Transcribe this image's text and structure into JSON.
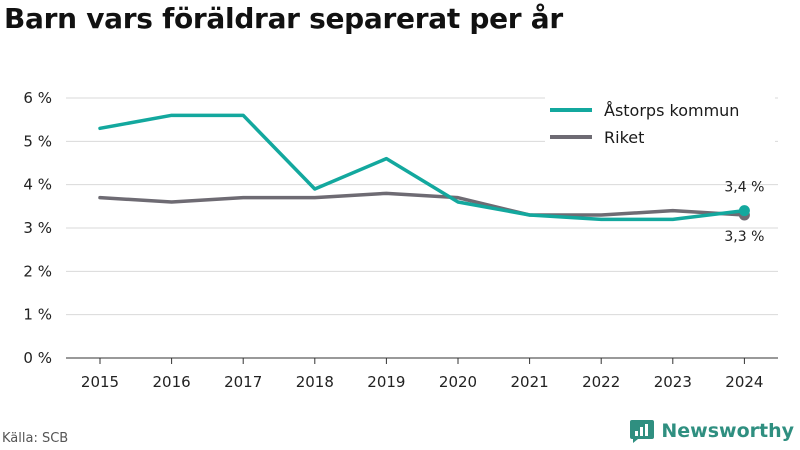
{
  "chart_data": {
    "type": "line",
    "title": "Barn vars föräldrar separerat per år",
    "x": [
      "2015",
      "2016",
      "2017",
      "2018",
      "2019",
      "2020",
      "2021",
      "2022",
      "2023",
      "2024"
    ],
    "y_ticks": [
      "0 %",
      "1 %",
      "2 %",
      "3 %",
      "4 %",
      "5 %",
      "6 %"
    ],
    "ylim": [
      0,
      6
    ],
    "grid": true,
    "legend_position": "top-right",
    "series": [
      {
        "name": "Åstorps kommun",
        "color": "#13a89e",
        "values": [
          5.3,
          5.6,
          5.6,
          3.9,
          4.6,
          3.6,
          3.3,
          3.2,
          3.2,
          3.4
        ],
        "end_label": "3,4 %"
      },
      {
        "name": "Riket",
        "color": "#6e6b73",
        "values": [
          3.7,
          3.6,
          3.7,
          3.7,
          3.8,
          3.7,
          3.3,
          3.3,
          3.4,
          3.3
        ],
        "end_label": "3,3 %"
      }
    ]
  },
  "footer": {
    "source": "Källa: SCB",
    "brand": "Newsworthy"
  },
  "icons": {
    "brand_logo": "newsworthy-logo-icon"
  }
}
